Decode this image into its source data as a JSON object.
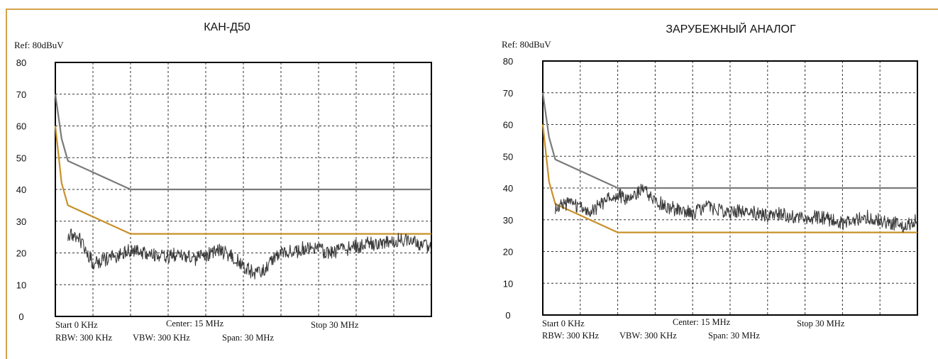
{
  "colors": {
    "frame": "#d4a24a",
    "limit_gray": "#7a7a7a",
    "limit_orange": "#c8902a",
    "noise": "#3a3a3a",
    "grid": "#333333"
  },
  "chart_data": [
    {
      "type": "line",
      "title": "КАН-Д50",
      "ref_label": "Ref: 80dBuV",
      "xlim": [
        0,
        30
      ],
      "ylim": [
        0,
        80
      ],
      "y_ticks": [
        "0",
        "10",
        "20",
        "30",
        "40",
        "50",
        "60",
        "70",
        "80"
      ],
      "grid": true,
      "info": {
        "start": "Start 0 KHz",
        "center": "Center: 15 MHz",
        "stop": "Stop   30 MHz",
        "rbw": "RBW: 300 KHz",
        "vbw": "VBW: 300 KHz",
        "span": "Span: 30 MHz"
      },
      "series": [
        {
          "color": "#7a7a7a",
          "x": [
            0,
            0.5,
            1,
            6,
            30
          ],
          "values": [
            70,
            56,
            49,
            40,
            40
          ]
        },
        {
          "color": "#c8902a",
          "x": [
            0,
            0.5,
            1,
            6,
            30
          ],
          "values": [
            60,
            42,
            35,
            26,
            26
          ]
        },
        {
          "color": "#3a3a3a",
          "x": [
            1,
            2,
            3,
            4,
            5,
            6,
            7,
            8,
            9,
            10,
            11,
            12,
            13,
            14,
            15,
            16,
            17,
            18,
            19,
            20,
            21,
            22,
            23,
            24,
            25,
            26,
            27,
            28,
            29,
            30
          ],
          "values": [
            26,
            24,
            17,
            18,
            19,
            21,
            20,
            19,
            19,
            20,
            18,
            19,
            21,
            19,
            16,
            13,
            16,
            21,
            20,
            22,
            21,
            20,
            21,
            22,
            23,
            23,
            24,
            24,
            23,
            21
          ]
        }
      ]
    },
    {
      "type": "line",
      "title": "ЗАРУБЕЖНЫЙ АНАЛОГ",
      "ref_label": "Ref: 80dBuV",
      "xlim": [
        0,
        30
      ],
      "ylim": [
        0,
        80
      ],
      "y_ticks": [
        "0",
        "10",
        "20",
        "30",
        "40",
        "50",
        "60",
        "70",
        "80"
      ],
      "grid": true,
      "info": {
        "start": "Start 0 KHz",
        "center": "Center: 15 MHz",
        "stop": "Stop   30 MHz",
        "rbw": "RBW: 300 KHz",
        "vbw": "VBW: 300 KHz",
        "span": "Span: 30 MHz"
      },
      "series": [
        {
          "color": "#7a7a7a",
          "x": [
            0,
            0.5,
            1,
            6,
            30
          ],
          "values": [
            70,
            56,
            49,
            40,
            40
          ]
        },
        {
          "color": "#c8902a",
          "x": [
            0,
            0.5,
            1,
            6,
            30
          ],
          "values": [
            60,
            42,
            35,
            26,
            26
          ]
        },
        {
          "color": "#3a3a3a",
          "x": [
            1,
            2,
            3,
            4,
            5,
            6,
            7,
            8,
            9,
            10,
            11,
            12,
            13,
            14,
            15,
            16,
            17,
            18,
            19,
            20,
            21,
            22,
            23,
            24,
            25,
            26,
            27,
            28,
            29,
            30
          ],
          "values": [
            34,
            35,
            34,
            33,
            36,
            38,
            36,
            40,
            36,
            34,
            33,
            32,
            34,
            33,
            32,
            33,
            32,
            31,
            32,
            31,
            30,
            31,
            30,
            29,
            30,
            31,
            30,
            29,
            28,
            30
          ]
        }
      ]
    }
  ]
}
